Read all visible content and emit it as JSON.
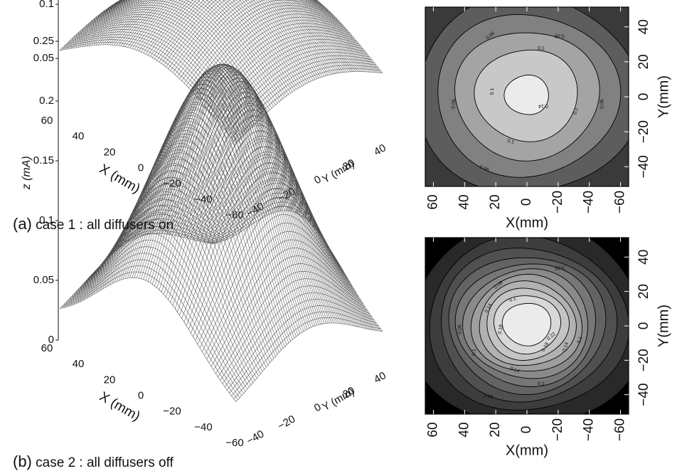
{
  "figure": {
    "captions": [
      {
        "tag": "(a)",
        "text": "case 1 : all diffusers on"
      },
      {
        "tag": "(b)",
        "text": "case 2 : all diffusers off"
      }
    ]
  },
  "chart_data": [
    {
      "type": "surface",
      "panel": "a",
      "xlabel": "X (mm)",
      "ylabel": "Y (mm)",
      "zlabel": "z (mA)",
      "xticks": [
        "60",
        "40",
        "20",
        "0",
        "−20",
        "−40",
        "−60"
      ],
      "yticks": [
        "−40",
        "−20",
        "0",
        "20",
        "40"
      ],
      "zticks": [
        "0.05",
        "0.1",
        "0.15",
        "0.2",
        "0.25"
      ],
      "xlim": [
        -60,
        60
      ],
      "ylim": [
        -50,
        50
      ],
      "zlim": [
        0,
        0.25
      ],
      "peak": 0.14,
      "base": 0.01,
      "sigma": 55
    },
    {
      "type": "contour",
      "panel": "a",
      "xlabel": "X(mm)",
      "ylabel": "Y(mm)",
      "xticks": [
        "60",
        "40",
        "20",
        "0",
        "−20",
        "−40",
        "−60"
      ],
      "yticks": [
        "40",
        "20",
        "0",
        "−20",
        "−40"
      ],
      "xlim": [
        -60,
        60
      ],
      "ylim": [
        -55,
        55
      ],
      "levels": [
        0.02,
        0.06,
        0.08,
        0.1,
        0.12,
        0.14
      ],
      "level_labels": [
        "0.06",
        "0.1",
        "0.1",
        "0.14",
        "0.1",
        "0.06",
        "0.1",
        "0.06",
        "0.08",
        "0.06"
      ],
      "peak": 0.145,
      "sigma": 48
    },
    {
      "type": "surface",
      "panel": "b",
      "xlabel": "X (mm)",
      "ylabel": "Y (mm)",
      "zlabel": "z (mA)",
      "xticks": [
        "60",
        "40",
        "20",
        "0",
        "−20",
        "−40",
        "−60"
      ],
      "yticks": [
        "−40",
        "−20",
        "0",
        "20",
        "40"
      ],
      "zticks": [
        "0",
        "0.05",
        "0.1",
        "0.15",
        "0.2",
        "0.25"
      ],
      "xlim": [
        -60,
        60
      ],
      "ylim": [
        -50,
        50
      ],
      "zlim": [
        0,
        0.25
      ],
      "peak": 0.24,
      "base": 0.01,
      "sigma": 34
    },
    {
      "type": "contour",
      "panel": "b",
      "xlabel": "X(mm)",
      "ylabel": "Y(mm)",
      "xticks": [
        "60",
        "40",
        "20",
        "0",
        "−20",
        "−40",
        "−60"
      ],
      "yticks": [
        "40",
        "20",
        "0",
        "−20",
        "−40"
      ],
      "xlim": [
        -60,
        60
      ],
      "ylim": [
        -55,
        55
      ],
      "levels": [
        0.02,
        0.04,
        0.06,
        0.08,
        0.1,
        0.12,
        0.14,
        0.16,
        0.18,
        0.2,
        0.22
      ],
      "level_labels": [
        "0.06",
        "0.1",
        "0.14",
        "0.18",
        "0.22",
        "0.18",
        "0.14",
        "0.1",
        "0.06",
        "0.06",
        "0.1",
        "0.14",
        "0.1",
        "0.06"
      ],
      "peak": 0.245,
      "sigma": 30
    }
  ]
}
